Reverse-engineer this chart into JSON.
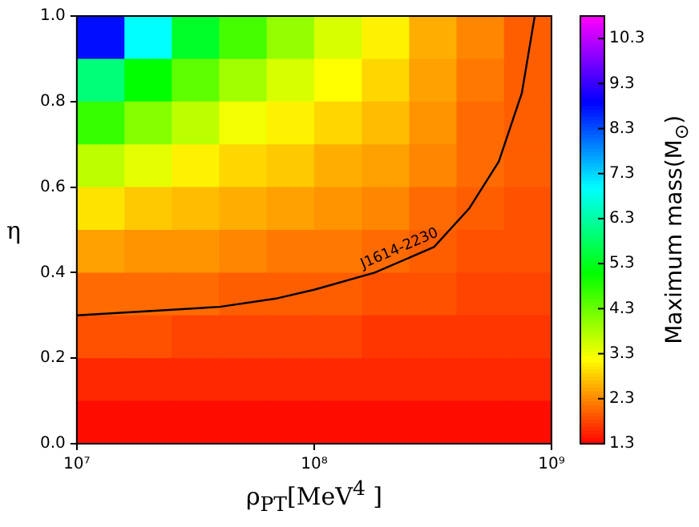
{
  "chart_data": {
    "type": "heatmap",
    "xlabel": "ρ$_{PT}$[MeV$^{4}$ ]",
    "ylabel": "η",
    "clabel": "Maximum mass(M$_{⊙}$)",
    "x": [
      12600000,
      20000000,
      31600000,
      50100000,
      79400000,
      126000000,
      200000000,
      316000000,
      501000000,
      794000000
    ],
    "cells": [
      [
        8.8,
        7.0,
        5.4,
        4.6,
        4.0,
        3.5,
        3.1,
        2.6,
        2.3,
        2.0
      ],
      [
        6.0,
        5.1,
        4.4,
        3.9,
        3.5,
        3.2,
        2.9,
        2.5,
        2.2,
        2.0
      ],
      [
        4.7,
        4.1,
        3.7,
        3.3,
        3.1,
        2.9,
        2.7,
        2.4,
        2.1,
        2.0
      ],
      [
        3.7,
        3.4,
        3.1,
        2.9,
        2.8,
        2.6,
        2.5,
        2.3,
        2.1,
        2.0
      ],
      [
        3.0,
        2.8,
        2.7,
        2.6,
        2.5,
        2.4,
        2.3,
        2.1,
        2.0,
        1.9
      ],
      [
        2.5,
        2.4,
        2.4,
        2.3,
        2.2,
        2.2,
        2.1,
        2.0,
        1.9,
        1.9
      ],
      [
        2.1,
        2.1,
        2.1,
        2.0,
        2.0,
        2.0,
        1.9,
        1.9,
        1.8,
        1.8
      ],
      [
        1.9,
        1.9,
        1.8,
        1.8,
        1.8,
        1.8,
        1.7,
        1.7,
        1.7,
        1.7
      ],
      [
        1.6,
        1.6,
        1.6,
        1.6,
        1.6,
        1.6,
        1.6,
        1.6,
        1.6,
        1.6
      ],
      [
        1.4,
        1.4,
        1.4,
        1.4,
        1.4,
        1.4,
        1.4,
        1.4,
        1.4,
        1.4
      ]
    ],
    "clim": [
      1.3,
      10.8
    ],
    "cticks": [
      1.3,
      2.3,
      3.3,
      4.3,
      5.3,
      6.3,
      7.3,
      8.3,
      9.3,
      10.3
    ],
    "log": "x",
    "xlim": [
      10000000,
      1000000000
    ],
    "xticks": [
      {
        "value": 10000000,
        "label": "10⁷"
      },
      {
        "value": 100000000,
        "label": "10⁸"
      },
      {
        "value": 1000000000,
        "label": "10⁹"
      }
    ],
    "ylim": [
      0,
      1
    ],
    "yticks": [
      {
        "value": 0,
        "label": "0.0"
      },
      {
        "value": 0.2,
        "label": "0.2"
      },
      {
        "value": 0.4,
        "label": "0.4"
      },
      {
        "value": 0.6,
        "label": "0.6"
      },
      {
        "value": 0.8,
        "label": "0.8"
      },
      {
        "value": 1,
        "label": "1.0"
      }
    ],
    "series": [
      {
        "name": "J1614-2230",
        "type": "line",
        "color": "#000000",
        "x": [
          10000000,
          20000000,
          40000000,
          70000000,
          100000000,
          180000000,
          320000000,
          450000000,
          600000000,
          750000000,
          850000000
        ],
        "values": [
          0.3,
          0.31,
          0.32,
          0.34,
          0.36,
          0.4,
          0.46,
          0.55,
          0.66,
          0.82,
          1.0
        ]
      }
    ],
    "legend": false
  }
}
